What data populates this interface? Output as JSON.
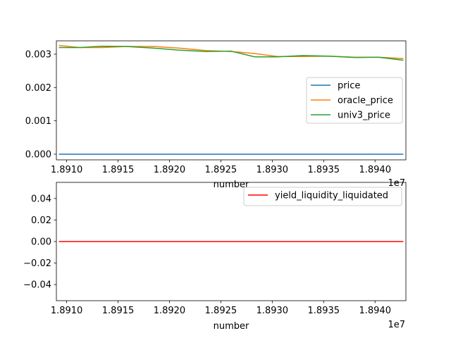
{
  "chart_data": [
    {
      "type": "line",
      "xlabel": "number",
      "ylabel": "",
      "x_offset_text": "1e7",
      "xlim": [
        18909000,
        18943000
      ],
      "ylim": [
        -0.00017,
        0.0034
      ],
      "x_ticks": [
        18910000,
        18915000,
        18920000,
        18925000,
        18930000,
        18935000,
        18940000
      ],
      "x_tick_labels": [
        "1.8910",
        "1.8915",
        "1.8920",
        "1.8925",
        "1.8930",
        "1.8935",
        "1.8940"
      ],
      "y_ticks": [
        0.0,
        0.001,
        0.002,
        0.003
      ],
      "y_tick_labels": [
        "0.000",
        "0.001",
        "0.002",
        "0.003"
      ],
      "grid": false,
      "legend_position": "center-right",
      "series": [
        {
          "name": "price",
          "color": "#1f77b4",
          "x": [
            18909300,
            18942700
          ],
          "y": [
            0.0,
            0.0
          ]
        },
        {
          "name": "oracle_price",
          "color": "#ff7f0e",
          "x": [
            18909300,
            18911300,
            18913500,
            18915800,
            18918500,
            18921000,
            18923500,
            18926000,
            18928300,
            18930500,
            18933000,
            18935500,
            18938000,
            18940300,
            18942700
          ],
          "y": [
            0.00326,
            0.0032,
            0.0032,
            0.00323,
            0.00323,
            0.00318,
            0.00311,
            0.00308,
            0.00302,
            0.00293,
            0.00293,
            0.00294,
            0.00291,
            0.00291,
            0.00287
          ]
        },
        {
          "name": "univ3_price",
          "color": "#2ca02c",
          "x": [
            18909300,
            18911300,
            18913500,
            18915800,
            18918500,
            18921000,
            18923500,
            18926000,
            18928300,
            18930500,
            18933000,
            18935500,
            18938000,
            18940300,
            18942700
          ],
          "y": [
            0.0032,
            0.0032,
            0.00324,
            0.00323,
            0.00318,
            0.00312,
            0.00308,
            0.00309,
            0.00292,
            0.00292,
            0.00296,
            0.00294,
            0.0029,
            0.00291,
            0.00282
          ]
        }
      ]
    },
    {
      "type": "line",
      "xlabel": "number",
      "ylabel": "",
      "x_offset_text": "1e7",
      "xlim": [
        18909000,
        18943000
      ],
      "ylim": [
        -0.055,
        0.055
      ],
      "x_ticks": [
        18910000,
        18915000,
        18920000,
        18925000,
        18930000,
        18935000,
        18940000
      ],
      "x_tick_labels": [
        "1.8910",
        "1.8915",
        "1.8920",
        "1.8925",
        "1.8930",
        "1.8935",
        "1.8940"
      ],
      "y_ticks": [
        0.04,
        0.02,
        0.0,
        -0.02,
        -0.04
      ],
      "y_tick_labels": [
        "0.04",
        "0.02",
        "0.00",
        "−0.02",
        "−0.04"
      ],
      "grid": false,
      "legend_position": "top-right",
      "series": [
        {
          "name": "yield_liquidity_liquidated",
          "color": "#ff0000",
          "x": [
            18909300,
            18942700
          ],
          "y": [
            0.0,
            0.0
          ]
        }
      ]
    }
  ]
}
